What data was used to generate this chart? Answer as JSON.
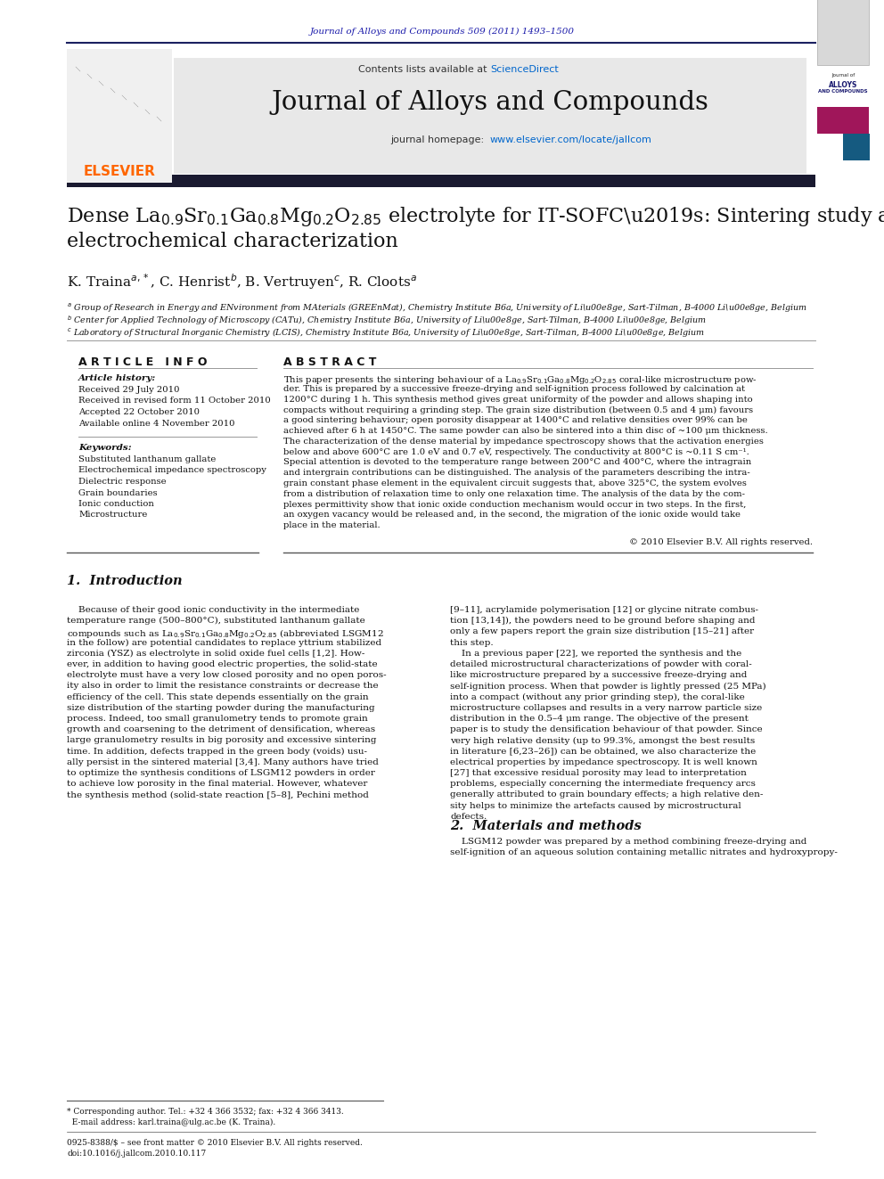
{
  "page_width": 9.92,
  "page_height": 13.23,
  "bg_color": "#ffffff",
  "header_journal_text": "Journal of Alloys and Compounds 509 (2011) 1493–1500",
  "header_journal_color": "#1a1aaa",
  "journal_name": "Journal of Alloys and Compounds",
  "homepage_url": "www.elsevier.com/locate/jallcom",
  "header_bg_color": "#e8e8e8",
  "elsevier_color": "#ff6600",
  "link_blue": "#0066cc",
  "sciencedirect_color": "#0066cc",
  "received_text": "Received 29 July 2010",
  "revised_text": "Received in revised form 11 October 2010",
  "accepted_text": "Accepted 22 October 2010",
  "available_text": "Available online 4 November 2010",
  "keywords": [
    "Substituted lanthanum gallate",
    "Electrochemical impedance spectroscopy",
    "Dielectric response",
    "Grain boundaries",
    "Ionic conduction",
    "Microstructure"
  ],
  "copyright_text": "© 2010 Elsevier B.V. All rights reserved.",
  "footer_issn": "0925-8388/$ – see front matter © 2010 Elsevier B.V. All rights reserved.",
  "footer_doi": "doi:10.1016/j.jallcom.2010.10.117",
  "abstract_lines": [
    "This paper presents the sintering behaviour of a La$_{0.9}$Sr$_{0.1}$Ga$_{0.8}$Mg$_{0.2}$O$_{2.85}$ coral-like microstructure pow-",
    "der. This is prepared by a successive freeze-drying and self-ignition process followed by calcination at",
    "1200°C during 1 h. This synthesis method gives great uniformity of the powder and allows shaping into",
    "compacts without requiring a grinding step. The grain size distribution (between 0.5 and 4 μm) favours",
    "a good sintering behaviour; open porosity disappear at 1400°C and relative densities over 99% can be",
    "achieved after 6 h at 1450°C. The same powder can also be sintered into a thin disc of ~100 μm thickness.",
    "The characterization of the dense material by impedance spectroscopy shows that the activation energies",
    "below and above 600°C are 1.0 eV and 0.7 eV, respectively. The conductivity at 800°C is ~0.11 S cm⁻¹.",
    "Special attention is devoted to the temperature range between 200°C and 400°C, where the intragrain",
    "and intergrain contributions can be distinguished. The analysis of the parameters describing the intra-",
    "grain constant phase element in the equivalent circuit suggests that, above 325°C, the system evolves",
    "from a distribution of relaxation time to only one relaxation time. The analysis of the data by the com-",
    "plexes permittivity show that ionic oxide conduction mechanism would occur in two steps. In the first,",
    "an oxygen vacancy would be released and, in the second, the migration of the ionic oxide would take",
    "place in the material."
  ],
  "intro_col1_lines": [
    "    Because of their good ionic conductivity in the intermediate",
    "temperature range (500–800°C), substituted lanthanum gallate",
    "compounds such as La$_{0.9}$Sr$_{0.1}$Ga$_{0.8}$Mg$_{0.2}$O$_{2.85}$ (abbreviated LSGM12",
    "in the follow) are potential candidates to replace yttrium stabilized",
    "zirconia (YSZ) as electrolyte in solid oxide fuel cells [1,2]. How-",
    "ever, in addition to having good electric properties, the solid-state",
    "electrolyte must have a very low closed porosity and no open poros-",
    "ity also in order to limit the resistance constraints or decrease the",
    "efficiency of the cell. This state depends essentially on the grain",
    "size distribution of the starting powder during the manufacturing",
    "process. Indeed, too small granulometry tends to promote grain",
    "growth and coarsening to the detriment of densification, whereas",
    "large granulometry results in big porosity and excessive sintering",
    "time. In addition, defects trapped in the green body (voids) usu-",
    "ally persist in the sintered material [3,4]. Many authors have tried",
    "to optimize the synthesis conditions of LSGM12 powders in order",
    "to achieve low porosity in the final material. However, whatever",
    "the synthesis method (solid-state reaction [5–8], Pechini method"
  ],
  "intro_col2_lines": [
    "[9–11], acrylamide polymerisation [12] or glycine nitrate combus-",
    "tion [13,14]), the powders need to be ground before shaping and",
    "only a few papers report the grain size distribution [15–21] after",
    "this step.",
    "    In a previous paper [22], we reported the synthesis and the",
    "detailed microstructural characterizations of powder with coral-",
    "like microstructure prepared by a successive freeze-drying and",
    "self-ignition process. When that powder is lightly pressed (25 MPa)",
    "into a compact (without any prior grinding step), the coral-like",
    "microstructure collapses and results in a very narrow particle size",
    "distribution in the 0.5–4 μm range. The objective of the present",
    "paper is to study the densification behaviour of that powder. Since",
    "very high relative density (up to 99.3%, amongst the best results",
    "in literature [6,23–26]) can be obtained, we also characterize the",
    "electrical properties by impedance spectroscopy. It is well known",
    "[27] that excessive residual porosity may lead to interpretation",
    "problems, especially concerning the intermediate frequency arcs",
    "generally attributed to grain boundary effects; a high relative den-",
    "sity helps to minimize the artefacts caused by microstructural",
    "defects."
  ],
  "mat_methods_lines": [
    "    LSGM12 powder was prepared by a method combining freeze-drying and",
    "self-ignition of an aqueous solution containing metallic nitrates and hydroxypropy-"
  ]
}
